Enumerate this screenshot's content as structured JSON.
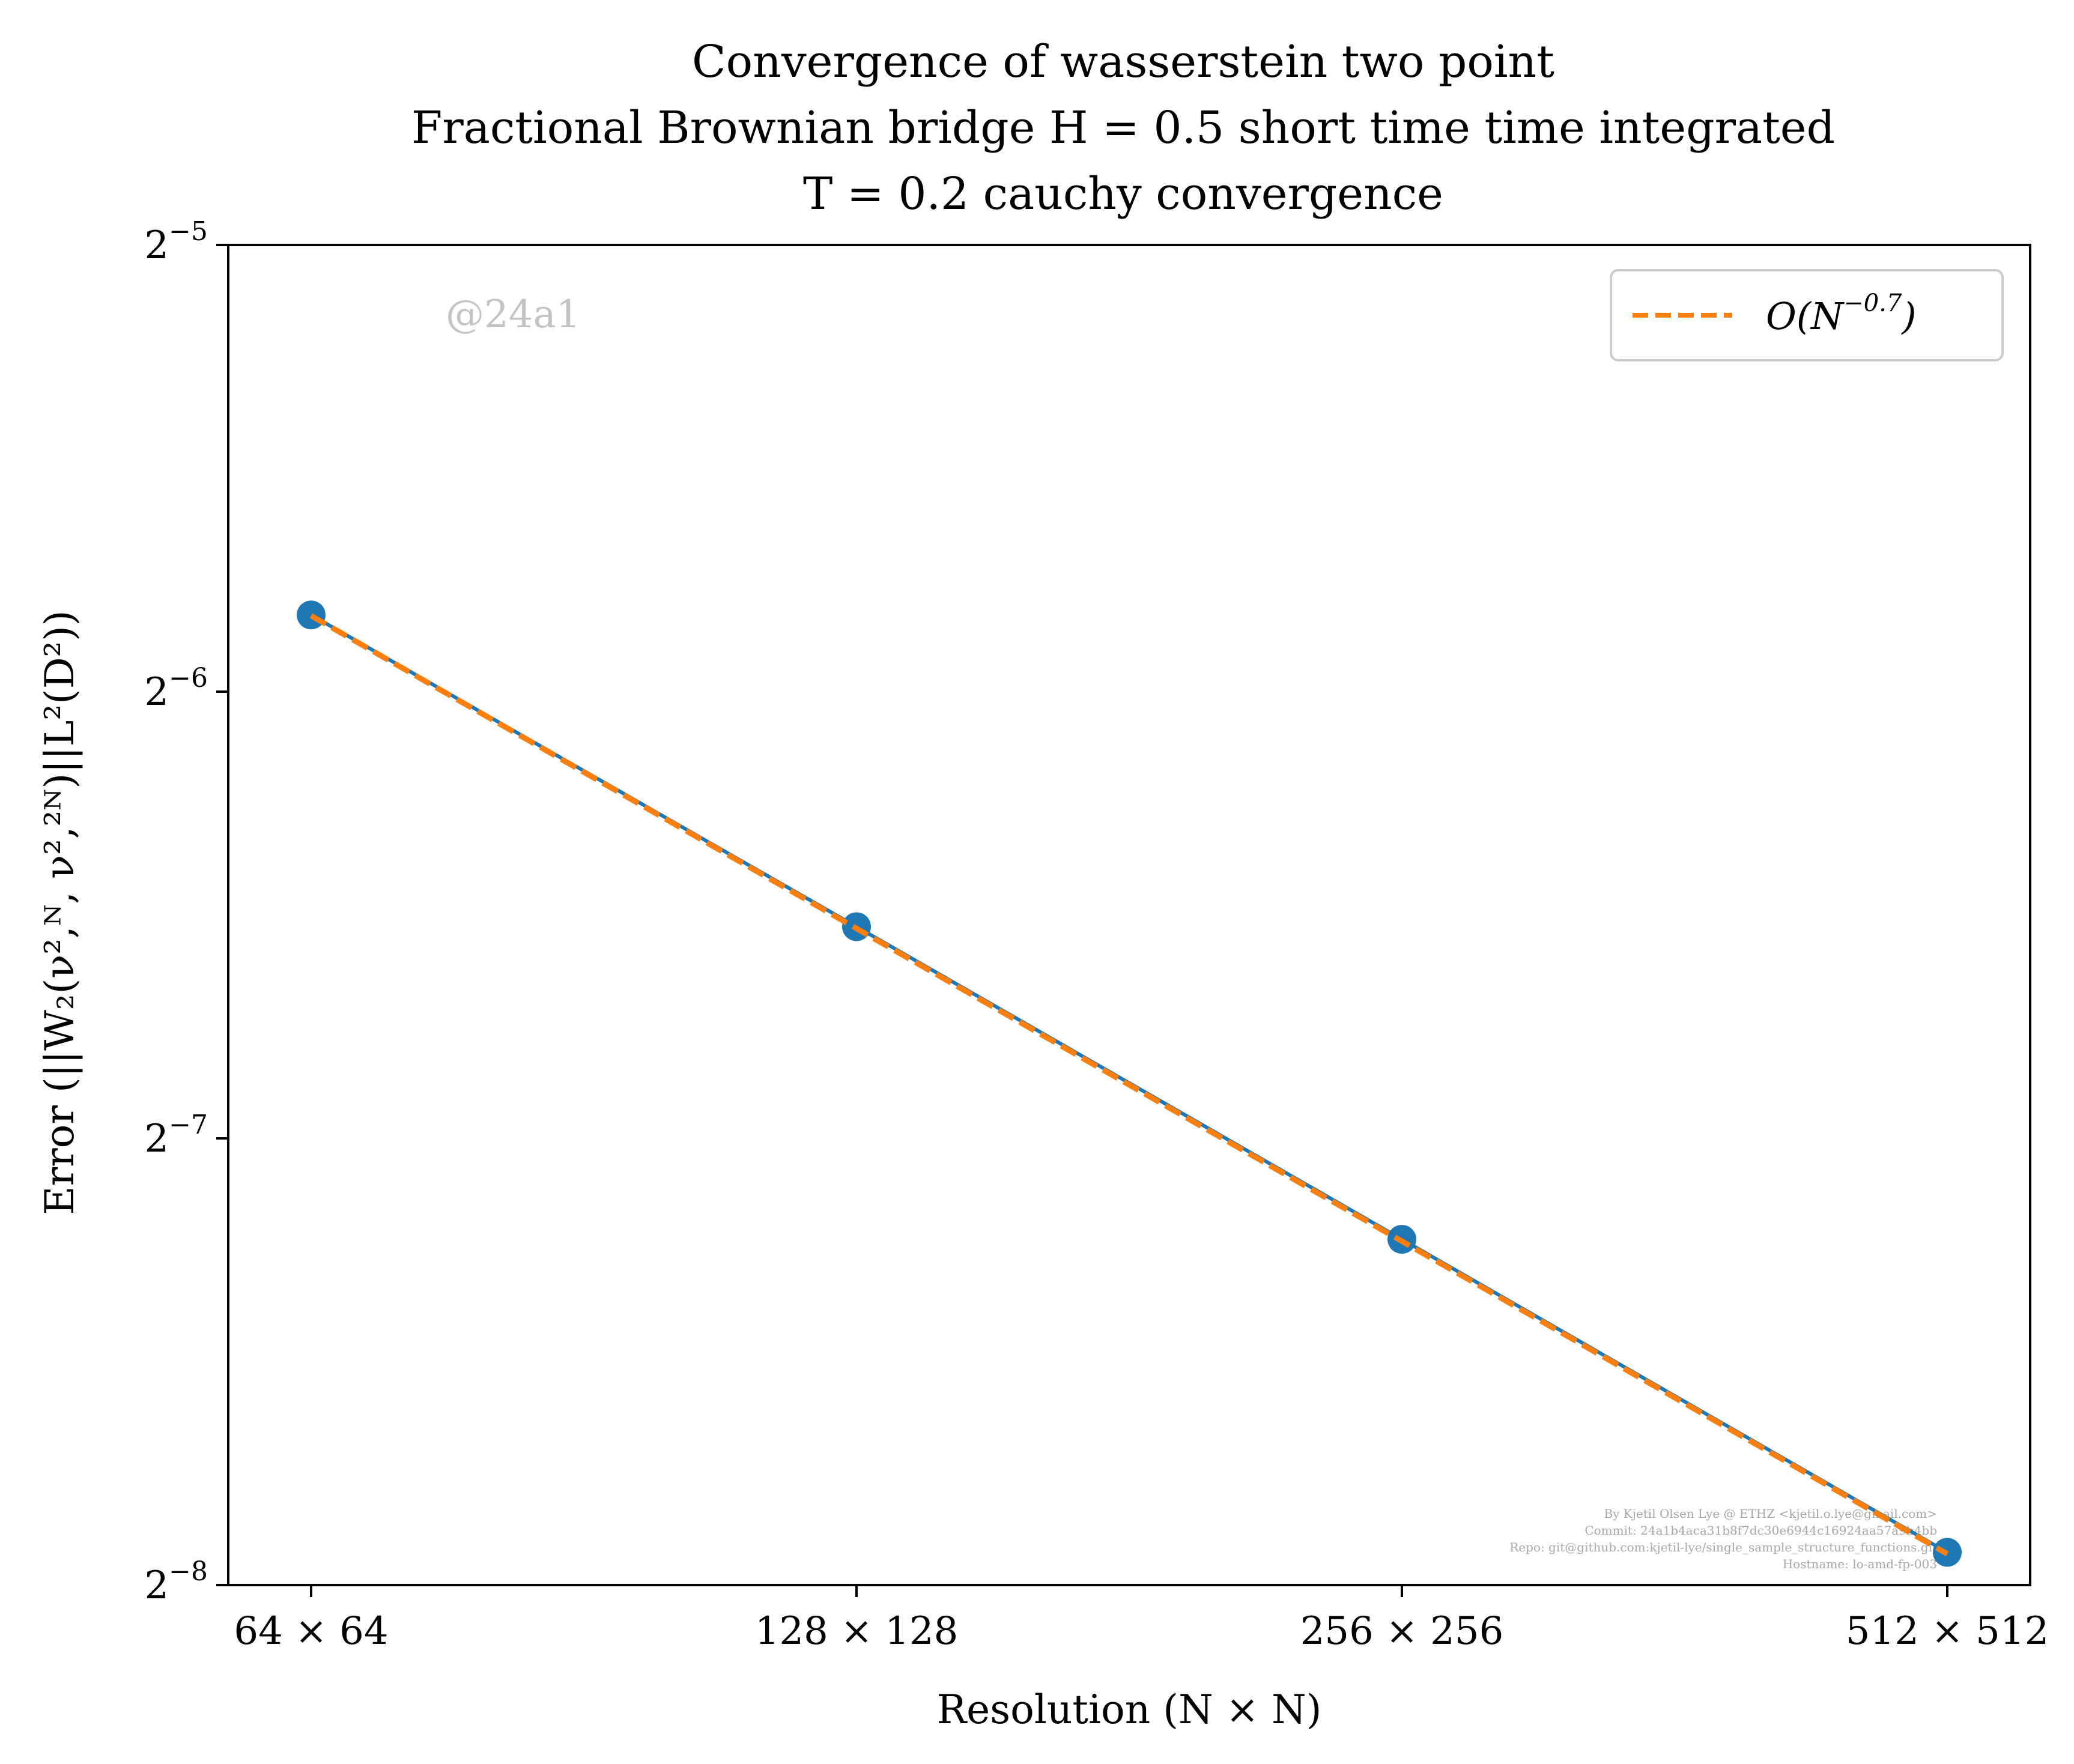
{
  "chart_data": {
    "type": "line",
    "title_lines": [
      "Convergence of wasserstein two point",
      "Fractional Brownian bridge H = 0.5 short time time integrated",
      "T = 0.2 cauchy convergence"
    ],
    "xlabel": "Resolution (N × N)",
    "ylabel": "Error (||W₂(ν²,ᴺ, ν²,²ᴺ)||L²(D²))",
    "x_scale": "log2",
    "y_scale": "log2",
    "x": [
      64,
      128,
      256,
      512
    ],
    "x_tick_labels": [
      "64 × 64",
      "128 × 128",
      "256 × 256",
      "512 × 512"
    ],
    "ylim": [
      0.00390625,
      0.03125
    ],
    "y_ticks": [
      0.03125,
      0.015625,
      0.0078125,
      0.00390625
    ],
    "y_tick_labels": [
      {
        "base": "2",
        "exp": "−5"
      },
      {
        "base": "2",
        "exp": "−6"
      },
      {
        "base": "2",
        "exp": "−7"
      },
      {
        "base": "2",
        "exp": "−8"
      }
    ],
    "series": [
      {
        "values": [
          0.0176,
          0.01085,
          0.00668,
          0.00411
        ],
        "color": "#1f77b4",
        "style": "solid",
        "marker": "circle"
      },
      {
        "name": "O(N^−0.7)",
        "values": [
          0.01758,
          0.01082,
          0.00666,
          0.0041
        ],
        "color": "#ff7f0e",
        "style": "dashed",
        "marker": "none"
      }
    ],
    "legend": {
      "placement": "top-right",
      "label_main": "O(N",
      "label_exp": "−0.7",
      "label_close": ")"
    },
    "grid": false
  },
  "watermark": "@24a1",
  "footer_lines": [
    "By Kjetil Olsen Lye @ ETHZ <kjetil.o.lye@gmail.com>",
    "Commit: 24a1b4aca31b8f7dc30e6944c16924aa57a9b4bb",
    "Repo: git@github.com:kjetil-lye/single_sample_structure_functions.git",
    "Hostname: lo-amd-fp-003"
  ]
}
